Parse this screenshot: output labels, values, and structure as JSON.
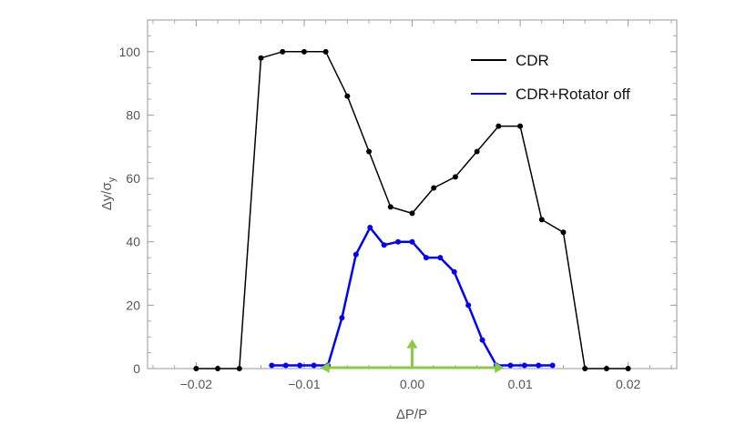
{
  "chart_data": {
    "type": "line",
    "title": "",
    "xlabel": "ΔP/P",
    "ylabel_main": "Δy/σ",
    "ylabel_sub": "y",
    "xlim": [
      -0.0245,
      0.0245
    ],
    "ylim": [
      0,
      110
    ],
    "xticks": [
      -0.02,
      -0.01,
      0.0,
      0.01,
      0.02
    ],
    "xtick_labels": [
      "−0.02",
      "−0.01",
      "0.00",
      "0.01",
      "0.02"
    ],
    "yticks": [
      0,
      20,
      40,
      60,
      80,
      100
    ],
    "ytick_labels": [
      "0",
      "20",
      "40",
      "60",
      "80",
      "100"
    ],
    "grid": false,
    "legend_position": "top-right",
    "series": [
      {
        "name": "CDR",
        "color": "#000000",
        "x": [
          -0.02,
          -0.018,
          -0.016,
          -0.014,
          -0.012,
          -0.01,
          -0.008,
          -0.006,
          -0.004,
          -0.002,
          0.0,
          0.002,
          0.004,
          0.006,
          0.008,
          0.01,
          0.012,
          0.014,
          0.016,
          0.018,
          0.02
        ],
        "y": [
          0,
          0,
          0,
          98,
          100,
          100,
          100,
          86,
          68.5,
          51,
          49,
          57,
          60.5,
          68.5,
          76.5,
          76.5,
          47,
          43,
          0,
          0,
          0
        ]
      },
      {
        "name": "CDR+Rotator off",
        "color": "#0000ff",
        "x": [
          -0.013,
          -0.0117,
          -0.0104,
          -0.0091,
          -0.0078,
          -0.0065,
          -0.0052,
          -0.0039,
          -0.0026,
          -0.0013,
          0.0,
          0.0013,
          0.0026,
          0.0039,
          0.0052,
          0.0065,
          0.0078,
          0.0091,
          0.0104,
          0.0117,
          0.013
        ],
        "y": [
          1,
          1,
          1,
          1,
          1,
          16,
          36,
          44.5,
          39,
          40,
          40,
          35,
          35,
          30.5,
          20,
          9,
          1,
          1,
          1,
          1,
          1
        ]
      }
    ],
    "annotations": [
      {
        "type": "double-arrow",
        "color": "#88cc44",
        "from": [
          -0.0085,
          0
        ],
        "to": [
          0.0085,
          0
        ]
      },
      {
        "type": "arrow",
        "color": "#88cc44",
        "from": [
          0,
          0
        ],
        "to": [
          0,
          9
        ]
      }
    ]
  }
}
